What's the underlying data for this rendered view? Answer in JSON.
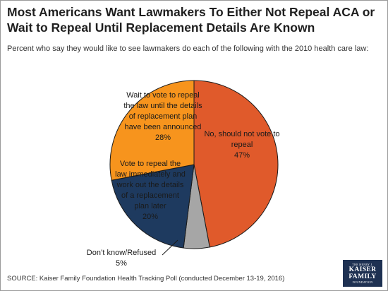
{
  "chart_data": {
    "type": "pie",
    "title": "Most Americans Want Lawmakers To Either Not Repeal ACA or Wait to Repeal Until Replacement Details Are Known",
    "subtitle": "Percent who say they would like to see lawmakers do each of the following with the 2010 health care law:",
    "slices": [
      {
        "label": "No, should not vote to repeal",
        "value": 47,
        "value_label": "47%",
        "color": "#e05a2b"
      },
      {
        "label": "Don’t know/Refused",
        "value": 5,
        "value_label": "5%",
        "color": "#a6a6a6"
      },
      {
        "label": "Vote to repeal the law immediately and work out the details of a replacement plan later",
        "value": 20,
        "value_label": "20%",
        "color": "#1e3a5f"
      },
      {
        "label": "Wait to vote to repeal the law until the details of replacement plan have been announced",
        "value": 28,
        "value_label": "28%",
        "color": "#f7941d"
      }
    ],
    "start_angle": "12 o'clock",
    "direction": "clockwise",
    "legend": "none"
  },
  "source": "SOURCE: Kaiser Family Foundation Health Tracking Poll (conducted December 13-19, 2016)",
  "logo": {
    "line1": "THE HENRY J.",
    "line2": "KAISER",
    "line3": "FAMILY",
    "line4": "FOUNDATION"
  }
}
